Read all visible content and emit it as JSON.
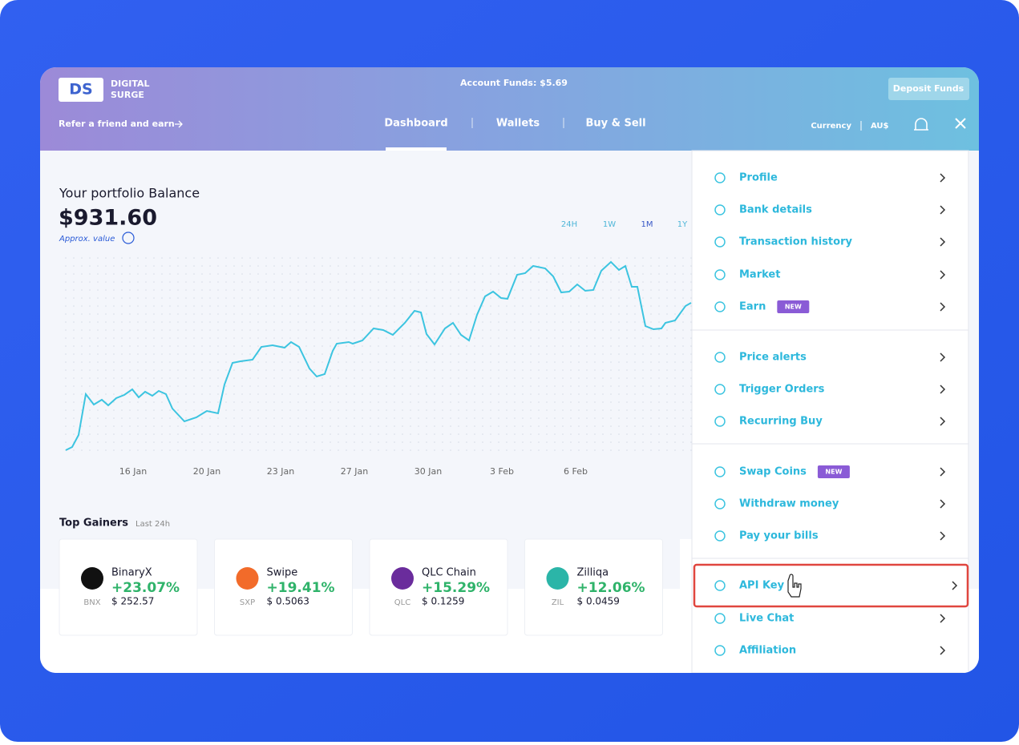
{
  "header": {
    "logo": "DS",
    "brand_line1": "DIGITAL",
    "brand_line2": "SURGE",
    "account_funds": "Account Funds: $5.69",
    "deposit_button": "Deposit Funds",
    "referral": "Refer a friend and earn",
    "nav": [
      "Dashboard",
      "Wallets",
      "Buy & Sell"
    ],
    "currency_label": "Currency",
    "currency": "AU$"
  },
  "portfolio": {
    "title": "Your portfolio Balance",
    "balance": "$931.60",
    "approx": "Approx. value",
    "ranges": [
      "24H",
      "1W",
      "1M",
      "1Y"
    ],
    "dates": [
      "16 Jan",
      "20 Jan",
      "23 Jan",
      "27 Jan",
      "30 Jan",
      "3 Feb",
      "6 Feb"
    ]
  },
  "gainers": {
    "title": "Top Gainers",
    "subtitle": "Last 24h",
    "items": [
      {
        "name": "BinaryX",
        "change": "+23.07%",
        "symbol": "BNX",
        "price": "$ 252.57"
      },
      {
        "name": "Swipe",
        "change": "+19.41%",
        "symbol": "SXP",
        "price": "$ 0.5063"
      },
      {
        "name": "QLC Chain",
        "change": "+15.29%",
        "symbol": "QLC",
        "price": "$ 0.1259"
      },
      {
        "name": "Zilliqa",
        "change": "+12.06%",
        "symbol": "ZIL",
        "price": "$ 0.0459"
      }
    ]
  },
  "menu": {
    "badge": "NEW",
    "items": [
      {
        "label": "Profile"
      },
      {
        "label": "Bank details"
      },
      {
        "label": "Transaction history"
      },
      {
        "label": "Market"
      },
      {
        "label": "Earn",
        "new": true
      },
      {
        "label": "Price alerts"
      },
      {
        "label": "Trigger Orders"
      },
      {
        "label": "Recurring Buy"
      },
      {
        "label": "Swap Coins",
        "new": true
      },
      {
        "label": "Withdraw money"
      },
      {
        "label": "Pay your bills"
      },
      {
        "label": "API Key",
        "highlighted": true
      },
      {
        "label": "Live Chat"
      },
      {
        "label": "Affiliation"
      }
    ]
  }
}
